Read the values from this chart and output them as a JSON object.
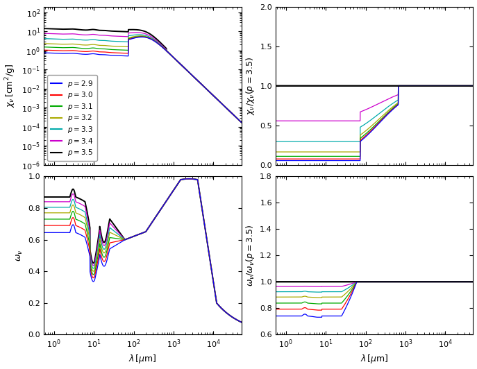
{
  "p_values": [
    2.9,
    3.0,
    3.1,
    3.2,
    3.3,
    3.4,
    3.5
  ],
  "colors": [
    "#0000ff",
    "#ff0000",
    "#00aa00",
    "#aaaa00",
    "#00aaaa",
    "#cc00cc",
    "#000000"
  ],
  "lambda_min": 0.55,
  "lambda_max": 50000,
  "n_points": 2000,
  "chi_ylim_log": [
    -6,
    2.3
  ],
  "chi_ratio_ylim": [
    0.0,
    2.0
  ],
  "omega_ylim": [
    0.0,
    1.0
  ],
  "omega_ratio_ylim": [
    0.6,
    1.8
  ],
  "xlabel": "$\\lambda\\,[\\mu{\\rm m}]$",
  "ylabel_chi": "$\\chi_\\nu\\,[{\\rm cm}^2/{\\rm g}]$",
  "ylabel_chi_ratio": "$\\chi_\\nu/\\chi_\\nu(p=3.5)$",
  "ylabel_omega": "$\\omega_\\nu$",
  "ylabel_omega_ratio": "$\\omega_\\nu/\\omega_\\nu(p=3.5)$",
  "legend_labels": [
    "$p=2.9$",
    "$p=3.0$",
    "$p=3.1$",
    "$p=3.2$",
    "$p=3.3$",
    "$p=3.4$",
    "$p=3.5$"
  ]
}
